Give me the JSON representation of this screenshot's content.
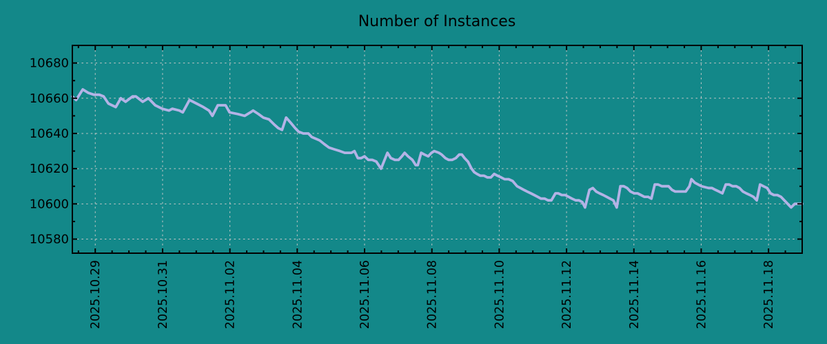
{
  "colors": {
    "background": "#138889",
    "line": "#b3b3e6",
    "grid": "#c8c8c8",
    "axis": "#000000",
    "text": "#000000"
  },
  "chart_data": {
    "type": "line",
    "title": "Number of Instances",
    "xlabel": "",
    "ylabel": "",
    "legend": "none",
    "grid_style": "dashed, at major ticks, both axes",
    "x_unit": "days since 2025-10-29",
    "x_range": [
      -0.68,
      21.0
    ],
    "y_range": [
      10572,
      10690
    ],
    "y_ticks_major": [
      10580,
      10600,
      10620,
      10640,
      10660,
      10680
    ],
    "y_minor_step": 10,
    "x_minor_step": 0.5,
    "x_ticks_major": [
      {
        "day": 0,
        "label": "2025.10.29"
      },
      {
        "day": 2,
        "label": "2025.10.31"
      },
      {
        "day": 4,
        "label": "2025.11.02"
      },
      {
        "day": 6,
        "label": "2025.11.04"
      },
      {
        "day": 8,
        "label": "2025.11.06"
      },
      {
        "day": 10,
        "label": "2025.11.08"
      },
      {
        "day": 12,
        "label": "2025.11.10"
      },
      {
        "day": 14,
        "label": "2025.11.12"
      },
      {
        "day": 16,
        "label": "2025.11.14"
      },
      {
        "day": 18,
        "label": "2025.11.16"
      },
      {
        "day": 20,
        "label": "2025.11.18"
      }
    ],
    "series": [
      {
        "name": "Number of Instances",
        "points": [
          [
            -0.68,
            10661
          ],
          [
            -0.57,
            10659
          ],
          [
            -0.37,
            10665
          ],
          [
            -0.2,
            10663
          ],
          [
            -0.04,
            10662
          ],
          [
            0.12,
            10662
          ],
          [
            0.25,
            10661
          ],
          [
            0.39,
            10657
          ],
          [
            0.61,
            10655
          ],
          [
            0.76,
            10660
          ],
          [
            0.9,
            10658
          ],
          [
            1.11,
            10661
          ],
          [
            1.21,
            10661
          ],
          [
            1.41,
            10658
          ],
          [
            1.58,
            10660
          ],
          [
            1.78,
            10656
          ],
          [
            1.99,
            10654
          ],
          [
            2.19,
            10653
          ],
          [
            2.29,
            10654
          ],
          [
            2.5,
            10653
          ],
          [
            2.6,
            10652
          ],
          [
            2.8,
            10659
          ],
          [
            3.01,
            10657
          ],
          [
            3.21,
            10655
          ],
          [
            3.38,
            10653
          ],
          [
            3.48,
            10650
          ],
          [
            3.64,
            10656
          ],
          [
            3.87,
            10656
          ],
          [
            3.99,
            10652
          ],
          [
            4.24,
            10651
          ],
          [
            4.44,
            10650
          ],
          [
            4.61,
            10652
          ],
          [
            4.69,
            10653
          ],
          [
            4.85,
            10651
          ],
          [
            4.99,
            10649
          ],
          [
            5.16,
            10648
          ],
          [
            5.32,
            10645
          ],
          [
            5.44,
            10643
          ],
          [
            5.55,
            10642
          ],
          [
            5.67,
            10649
          ],
          [
            5.81,
            10646
          ],
          [
            5.94,
            10643
          ],
          [
            6.04,
            10641
          ],
          [
            6.18,
            10640
          ],
          [
            6.33,
            10640
          ],
          [
            6.43,
            10638
          ],
          [
            6.55,
            10637
          ],
          [
            6.67,
            10636
          ],
          [
            6.8,
            10634
          ],
          [
            6.94,
            10632
          ],
          [
            7.1,
            10631
          ],
          [
            7.27,
            10630
          ],
          [
            7.41,
            10629
          ],
          [
            7.61,
            10629
          ],
          [
            7.7,
            10630
          ],
          [
            7.8,
            10626
          ],
          [
            7.9,
            10626
          ],
          [
            8.0,
            10627
          ],
          [
            8.11,
            10625
          ],
          [
            8.23,
            10625
          ],
          [
            8.35,
            10624
          ],
          [
            8.49,
            10620
          ],
          [
            8.68,
            10629
          ],
          [
            8.78,
            10626
          ],
          [
            8.9,
            10625
          ],
          [
            9.01,
            10625
          ],
          [
            9.11,
            10627
          ],
          [
            9.19,
            10629
          ],
          [
            9.29,
            10627
          ],
          [
            9.42,
            10625
          ],
          [
            9.52,
            10622
          ],
          [
            9.58,
            10622
          ],
          [
            9.68,
            10629
          ],
          [
            9.78,
            10628
          ],
          [
            9.89,
            10627
          ],
          [
            9.99,
            10629
          ],
          [
            10.07,
            10630
          ],
          [
            10.21,
            10629
          ],
          [
            10.29,
            10628
          ],
          [
            10.4,
            10626
          ],
          [
            10.5,
            10625
          ],
          [
            10.6,
            10625
          ],
          [
            10.71,
            10626
          ],
          [
            10.81,
            10628
          ],
          [
            10.89,
            10628
          ],
          [
            10.97,
            10626
          ],
          [
            11.07,
            10624
          ],
          [
            11.18,
            10620
          ],
          [
            11.26,
            10618
          ],
          [
            11.34,
            10617
          ],
          [
            11.44,
            10616
          ],
          [
            11.55,
            10616
          ],
          [
            11.65,
            10615
          ],
          [
            11.75,
            10615
          ],
          [
            11.85,
            10617
          ],
          [
            11.95,
            10616
          ],
          [
            12.06,
            10615
          ],
          [
            12.16,
            10614
          ],
          [
            12.28,
            10614
          ],
          [
            12.4,
            10613
          ],
          [
            12.53,
            10610
          ],
          [
            12.63,
            10609
          ],
          [
            12.73,
            10608
          ],
          [
            12.83,
            10607
          ],
          [
            12.94,
            10606
          ],
          [
            13.04,
            10605
          ],
          [
            13.14,
            10604
          ],
          [
            13.24,
            10603
          ],
          [
            13.35,
            10603
          ],
          [
            13.45,
            10602
          ],
          [
            13.55,
            10602
          ],
          [
            13.67,
            10606
          ],
          [
            13.75,
            10606
          ],
          [
            13.86,
            10605
          ],
          [
            13.96,
            10605
          ],
          [
            14.06,
            10604
          ],
          [
            14.16,
            10603
          ],
          [
            14.27,
            10602
          ],
          [
            14.37,
            10602
          ],
          [
            14.47,
            10601
          ],
          [
            14.55,
            10598
          ],
          [
            14.68,
            10608
          ],
          [
            14.78,
            10609
          ],
          [
            14.88,
            10607
          ],
          [
            14.98,
            10606
          ],
          [
            15.09,
            10605
          ],
          [
            15.19,
            10604
          ],
          [
            15.29,
            10603
          ],
          [
            15.39,
            10602
          ],
          [
            15.49,
            10598
          ],
          [
            15.6,
            10610
          ],
          [
            15.7,
            10610
          ],
          [
            15.8,
            10609
          ],
          [
            15.9,
            10607
          ],
          [
            16.01,
            10606
          ],
          [
            16.11,
            10606
          ],
          [
            16.21,
            10605
          ],
          [
            16.31,
            10604
          ],
          [
            16.42,
            10604
          ],
          [
            16.52,
            10603
          ],
          [
            16.62,
            10611
          ],
          [
            16.72,
            10611
          ],
          [
            16.83,
            10610
          ],
          [
            16.93,
            10610
          ],
          [
            17.03,
            10610
          ],
          [
            17.13,
            10608
          ],
          [
            17.23,
            10607
          ],
          [
            17.34,
            10607
          ],
          [
            17.54,
            10607
          ],
          [
            17.65,
            10610
          ],
          [
            17.71,
            10614
          ],
          [
            17.81,
            10612
          ],
          [
            17.91,
            10611
          ],
          [
            18.01,
            10610
          ],
          [
            18.22,
            10609
          ],
          [
            18.32,
            10609
          ],
          [
            18.42,
            10608
          ],
          [
            18.53,
            10607
          ],
          [
            18.63,
            10606
          ],
          [
            18.73,
            10611
          ],
          [
            18.83,
            10611
          ],
          [
            18.93,
            10610
          ],
          [
            19.04,
            10610
          ],
          [
            19.14,
            10609
          ],
          [
            19.24,
            10607
          ],
          [
            19.34,
            10606
          ],
          [
            19.45,
            10605
          ],
          [
            19.55,
            10604
          ],
          [
            19.65,
            10602
          ],
          [
            19.75,
            10611
          ],
          [
            19.85,
            10610
          ],
          [
            19.96,
            10609
          ],
          [
            20.06,
            10606
          ],
          [
            20.16,
            10605
          ],
          [
            20.26,
            10605
          ],
          [
            20.37,
            10604
          ],
          [
            20.47,
            10602
          ],
          [
            20.57,
            10600
          ],
          [
            20.67,
            10598
          ],
          [
            20.78,
            10600
          ],
          [
            20.88,
            10600
          ],
          [
            21.0,
            10600
          ]
        ]
      }
    ]
  }
}
